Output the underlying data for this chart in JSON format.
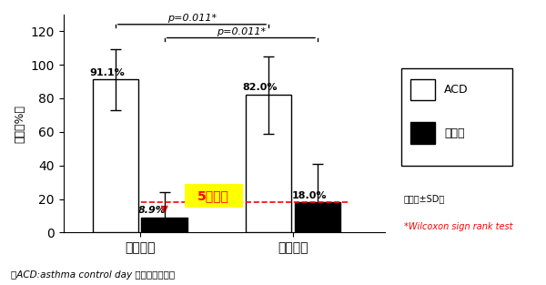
{
  "groups": [
    "マスク有",
    "マスク無"
  ],
  "acd_values": [
    91.1,
    82.0
  ],
  "acd_errors": [
    18.0,
    23.0
  ],
  "symptom_values": [
    8.9,
    18.0
  ],
  "symptom_errors": [
    15.0,
    23.0
  ],
  "acd_labels": [
    "91.1%",
    "82.0%"
  ],
  "symptom_labels": [
    "8.9%",
    "18.0%"
  ],
  "ylabel": "割合（%）",
  "ylim": [
    0,
    130
  ],
  "yticks": [
    0,
    20,
    40,
    60,
    80,
    100,
    120
  ],
  "pvalue1": "p=0.011*",
  "pvalue2": "p=0.011*",
  "annotation_text": "5割低減",
  "legend_acd": "ACD",
  "legend_symptom": "症状有",
  "footnote1": "（平均±SD）",
  "footnote2": "*Wilcoxon sign rank test",
  "bottom_note": "〈ACD:asthma control day 喘息無症状日〉",
  "bar_width": 0.3,
  "group_positions": [
    0.5,
    1.5
  ],
  "acd_color": "white",
  "symptom_color": "black",
  "acd_edgecolor": "black",
  "symptom_edgecolor": "black",
  "dashed_line_y": 18.0,
  "arrow_color": "red",
  "highlight_color": "#FFFF00",
  "highlight_text_color": "red"
}
